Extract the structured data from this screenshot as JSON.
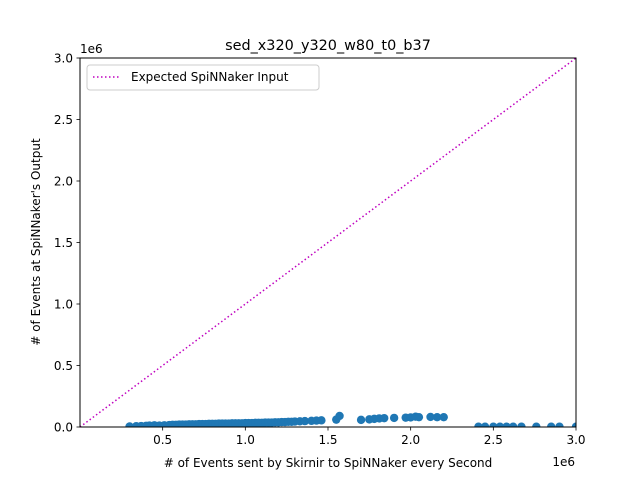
{
  "chart_data": {
    "type": "scatter",
    "title": "sed_x320_y320_w80_t0_b37",
    "xlabel": "# of Events sent by Skirnir to SpiNNaker every Second",
    "ylabel": "# of Events at SpiNNaker's Output",
    "x_offset_label": "1e6",
    "y_offset_label": "1e6",
    "xlim": [
      0,
      3.0
    ],
    "ylim": [
      0,
      3.0
    ],
    "xticks": [
      "0.5",
      "1.0",
      "1.5",
      "2.0",
      "2.5",
      "3.0"
    ],
    "yticks": [
      "0.0",
      "0.5",
      "1.0",
      "1.5",
      "2.0",
      "2.5",
      "3.0"
    ],
    "grid": false,
    "legend": {
      "position": "upper-left",
      "entries": [
        "Expected SpiNNaker Input"
      ]
    },
    "colors": {
      "scatter": "#1f77b4",
      "expected_line": "#bf00bf"
    },
    "series": [
      {
        "type": "scatter",
        "points": [
          [
            0.3,
            0.004
          ],
          [
            0.34,
            0.006
          ],
          [
            0.37,
            0.008
          ],
          [
            0.4,
            0.01
          ],
          [
            0.42,
            0.012
          ],
          [
            0.45,
            0.014
          ],
          [
            0.48,
            0.012
          ],
          [
            0.51,
            0.014
          ],
          [
            0.54,
            0.016
          ],
          [
            0.56,
            0.018
          ],
          [
            0.58,
            0.018
          ],
          [
            0.6,
            0.02
          ],
          [
            0.62,
            0.02
          ],
          [
            0.64,
            0.02
          ],
          [
            0.66,
            0.022
          ],
          [
            0.68,
            0.022
          ],
          [
            0.7,
            0.022
          ],
          [
            0.72,
            0.024
          ],
          [
            0.74,
            0.024
          ],
          [
            0.76,
            0.024
          ],
          [
            0.78,
            0.026
          ],
          [
            0.8,
            0.026
          ],
          [
            0.82,
            0.026
          ],
          [
            0.84,
            0.028
          ],
          [
            0.86,
            0.028
          ],
          [
            0.88,
            0.028
          ],
          [
            0.9,
            0.028
          ],
          [
            0.92,
            0.03
          ],
          [
            0.94,
            0.03
          ],
          [
            0.96,
            0.03
          ],
          [
            0.98,
            0.03
          ],
          [
            1.0,
            0.032
          ],
          [
            1.02,
            0.032
          ],
          [
            1.04,
            0.032
          ],
          [
            1.06,
            0.034
          ],
          [
            1.08,
            0.034
          ],
          [
            1.1,
            0.034
          ],
          [
            1.12,
            0.036
          ],
          [
            1.14,
            0.036
          ],
          [
            1.16,
            0.036
          ],
          [
            1.18,
            0.038
          ],
          [
            1.2,
            0.038
          ],
          [
            1.22,
            0.04
          ],
          [
            1.24,
            0.04
          ],
          [
            1.26,
            0.042
          ],
          [
            1.28,
            0.042
          ],
          [
            1.3,
            0.044
          ],
          [
            1.33,
            0.046
          ],
          [
            1.36,
            0.048
          ],
          [
            1.4,
            0.05
          ],
          [
            1.43,
            0.052
          ],
          [
            1.46,
            0.054
          ],
          [
            1.55,
            0.06
          ],
          [
            1.57,
            0.09
          ],
          [
            1.7,
            0.058
          ],
          [
            1.75,
            0.062
          ],
          [
            1.78,
            0.066
          ],
          [
            1.81,
            0.07
          ],
          [
            1.84,
            0.072
          ],
          [
            1.9,
            0.074
          ],
          [
            1.97,
            0.076
          ],
          [
            2.0,
            0.078
          ],
          [
            2.03,
            0.084
          ],
          [
            2.05,
            0.08
          ],
          [
            2.12,
            0.082
          ],
          [
            2.16,
            0.08
          ],
          [
            2.2,
            0.08
          ],
          [
            2.41,
            0.002
          ],
          [
            2.45,
            0.002
          ],
          [
            2.5,
            0.002
          ],
          [
            2.54,
            0.002
          ],
          [
            2.58,
            0.002
          ],
          [
            2.62,
            0.002
          ],
          [
            2.67,
            0.002
          ],
          [
            2.76,
            0.002
          ],
          [
            2.85,
            0.002
          ],
          [
            2.9,
            0.002
          ],
          [
            3.0,
            0.002
          ]
        ]
      },
      {
        "name": "Expected SpiNNaker Input",
        "type": "line",
        "style": "dotted",
        "points": [
          [
            0,
            0
          ],
          [
            3.0,
            3.0
          ]
        ]
      }
    ]
  }
}
